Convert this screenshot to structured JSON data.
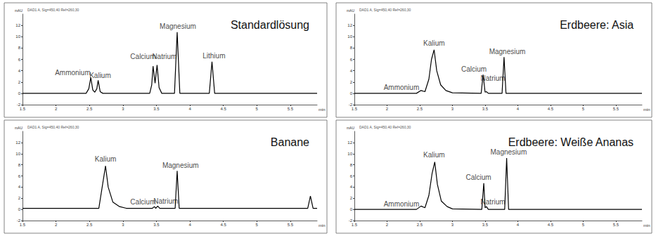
{
  "chart_data": [
    {
      "type": "line",
      "title": "Standardlösung",
      "header": "DAD1 A, Sig=450,40 Ref=260,30",
      "x_label": "min",
      "y_label": "mAU",
      "color": "#000000",
      "xlim": [
        1.5,
        5.9
      ],
      "xticks": [
        1.5,
        2,
        2.5,
        3,
        3.5,
        4,
        4.5,
        5,
        5.5
      ],
      "ylim": [
        -2,
        14
      ],
      "yticks": [
        -2,
        0,
        2,
        4,
        6,
        8,
        10,
        12
      ],
      "x": [
        1.5,
        2.45,
        2.49,
        2.52,
        2.55,
        2.58,
        2.61,
        2.63,
        2.66,
        2.7,
        3.4,
        3.43,
        3.45,
        3.48,
        3.51,
        3.54,
        3.58,
        3.77,
        3.81,
        3.85,
        4.29,
        4.33,
        4.37,
        5.9
      ],
      "values": [
        0,
        0,
        0.8,
        2.8,
        0.6,
        0.2,
        0.8,
        2.3,
        0.3,
        0,
        0,
        1.5,
        4.8,
        1.8,
        5.0,
        1.0,
        0,
        0,
        10.8,
        0,
        0,
        5.6,
        0,
        0
      ],
      "annotations": [
        {
          "text": "Ammonium",
          "x": 2.25,
          "y": 3.6
        },
        {
          "text": "Kalium",
          "x": 2.66,
          "y": 3.1
        },
        {
          "text": "Calcium",
          "x": 3.3,
          "y": 6.5
        },
        {
          "text": "Natrium",
          "x": 3.62,
          "y": 6.5
        },
        {
          "text": "Magnesium",
          "x": 3.82,
          "y": 11.8
        },
        {
          "text": "Lithium",
          "x": 4.36,
          "y": 6.6
        }
      ]
    },
    {
      "type": "line",
      "title": "Erdbeere: Asia",
      "header": "DAD1 A, Sig=450,40 Ref=260,30",
      "x_label": "min",
      "y_label": "mAU",
      "color": "#000000",
      "xlim": [
        1.5,
        5.9
      ],
      "xticks": [
        1.5,
        2,
        2.5,
        3,
        3.5,
        4,
        4.5,
        5,
        5.5
      ],
      "ylim": [
        -2,
        14
      ],
      "yticks": [
        -2,
        0,
        2,
        4,
        6,
        8,
        10,
        12
      ],
      "x": [
        1.5,
        2.45,
        2.52,
        2.58,
        2.64,
        2.68,
        2.72,
        2.76,
        2.82,
        2.9,
        3.0,
        3.44,
        3.47,
        3.5,
        3.52,
        3.55,
        3.76,
        3.79,
        3.82,
        5.9
      ],
      "values": [
        0,
        0,
        0.5,
        0.3,
        2.5,
        6.0,
        7.7,
        4.0,
        1.5,
        0.5,
        0.1,
        0,
        3.3,
        0.2,
        0.3,
        0,
        0,
        6.4,
        0,
        0
      ],
      "annotations": [
        {
          "text": "Ammonium",
          "x": 2.22,
          "y": 1.0
        },
        {
          "text": "Kalium",
          "x": 2.72,
          "y": 8.9
        },
        {
          "text": "Calcium",
          "x": 3.33,
          "y": 4.3
        },
        {
          "text": "Natrium",
          "x": 3.62,
          "y": 2.6
        },
        {
          "text": "Magnesium",
          "x": 3.84,
          "y": 7.4
        }
      ]
    },
    {
      "type": "line",
      "title": "Banane",
      "header": "DAD1 A, Sig=450,40 Ref=260,30",
      "x_label": "min",
      "y_label": "mAU",
      "color": "#000000",
      "xlim": [
        1.5,
        5.9
      ],
      "xticks": [
        1.5,
        2,
        2.5,
        3,
        3.5,
        4,
        4.5,
        5,
        5.5
      ],
      "ylim": [
        -2,
        14
      ],
      "yticks": [
        -2,
        0,
        2,
        4,
        6,
        8,
        10,
        12
      ],
      "x": [
        1.5,
        2.64,
        2.69,
        2.74,
        2.78,
        2.85,
        2.95,
        3.05,
        3.44,
        3.47,
        3.49,
        3.52,
        3.55,
        3.78,
        3.81,
        3.84,
        5.76,
        5.8,
        5.84,
        5.9
      ],
      "values": [
        0.2,
        0.2,
        4.0,
        7.8,
        4.0,
        1.3,
        0.5,
        0.2,
        0.2,
        0.5,
        0.2,
        0.6,
        0.2,
        0.2,
        6.9,
        0.2,
        0.2,
        2.4,
        0.2,
        0.2
      ],
      "annotations": [
        {
          "text": "Kalium",
          "x": 2.74,
          "y": 9.0
        },
        {
          "text": "Calcium",
          "x": 3.3,
          "y": 1.4
        },
        {
          "text": "Natrium",
          "x": 3.64,
          "y": 1.5
        },
        {
          "text": "Magnesium",
          "x": 3.86,
          "y": 7.9
        }
      ]
    },
    {
      "type": "line",
      "title": "Erdbeere: Weiße Ananas",
      "header": "DAD1 A, Sig=450,40 Ref=260,30",
      "x_label": "min",
      "y_label": "mAU",
      "color": "#000000",
      "xlim": [
        1.5,
        5.9
      ],
      "xticks": [
        1.5,
        2,
        2.5,
        3,
        3.5,
        4,
        4.5,
        5,
        5.5
      ],
      "ylim": [
        -2,
        14
      ],
      "yticks": [
        -2,
        0,
        2,
        4,
        6,
        8,
        10,
        12
      ],
      "x": [
        1.5,
        2.45,
        2.52,
        2.58,
        2.64,
        2.69,
        2.73,
        2.77,
        2.83,
        2.92,
        3.0,
        3.45,
        3.48,
        3.5,
        3.52,
        3.55,
        3.8,
        3.83,
        3.86,
        5.9
      ],
      "values": [
        0,
        0,
        0.6,
        0.3,
        2.5,
        6.5,
        8.5,
        4.5,
        1.5,
        0.5,
        0.1,
        0,
        4.7,
        0.3,
        0.5,
        0,
        0,
        9.2,
        0,
        0
      ],
      "annotations": [
        {
          "text": "Ammonium",
          "x": 2.22,
          "y": 1.0
        },
        {
          "text": "Kalium",
          "x": 2.72,
          "y": 9.8
        },
        {
          "text": "Calcium",
          "x": 3.4,
          "y": 5.7
        },
        {
          "text": "Natrium",
          "x": 3.62,
          "y": 1.3
        },
        {
          "text": "Magnesium",
          "x": 3.86,
          "y": 10.3
        }
      ]
    }
  ]
}
